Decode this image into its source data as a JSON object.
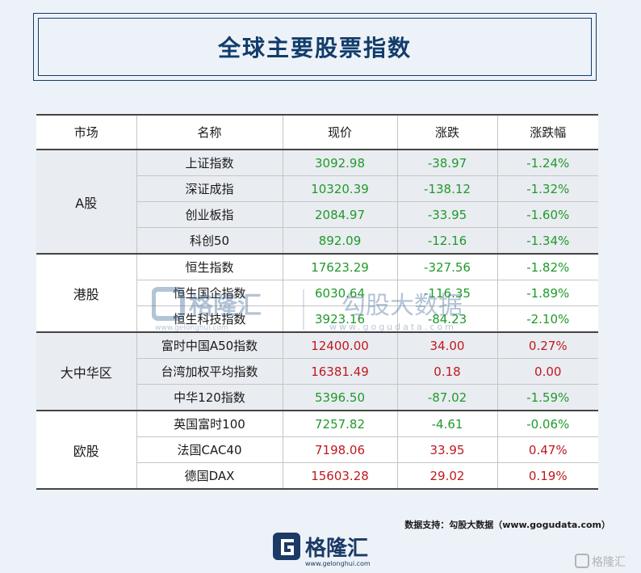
{
  "title": "全球主要股票指数",
  "headers": [
    "市场",
    "名称",
    "现价",
    "涨跌",
    "涨跌幅"
  ],
  "groups": [
    {
      "market": "A股",
      "rows": [
        {
          "name": "上证指数",
          "price": "3092.98",
          "change": "-38.97",
          "pct": "-1.24%",
          "dir": "down"
        },
        {
          "name": "深证成指",
          "price": "10320.39",
          "change": "-138.12",
          "pct": "-1.32%",
          "dir": "down"
        },
        {
          "name": "创业板指",
          "price": "2084.97",
          "change": "-33.95",
          "pct": "-1.60%",
          "dir": "down"
        },
        {
          "name": "科创50",
          "price": "892.09",
          "change": "-12.16",
          "pct": "-1.34%",
          "dir": "down"
        }
      ]
    },
    {
      "market": "港股",
      "rows": [
        {
          "name": "恒生指数",
          "price": "17623.29",
          "change": "-327.56",
          "pct": "-1.82%",
          "dir": "down"
        },
        {
          "name": "恒生国企指数",
          "price": "6030.64",
          "change": "-116.35",
          "pct": "-1.89%",
          "dir": "down"
        },
        {
          "name": "恒生科技指数",
          "price": "3923.16",
          "change": "-84.23",
          "pct": "-2.10%",
          "dir": "down"
        }
      ]
    },
    {
      "market": "大中华区",
      "rows": [
        {
          "name": "富时中国A50指数",
          "price": "12400.00",
          "change": "34.00",
          "pct": "0.27%",
          "dir": "up"
        },
        {
          "name": "台湾加权平均指数",
          "price": "16381.49",
          "change": "0.18",
          "pct": "0.00",
          "dir": "up"
        },
        {
          "name": "中华120指数",
          "price": "5396.50",
          "change": "-87.02",
          "pct": "-1.59%",
          "dir": "down"
        }
      ]
    },
    {
      "market": "欧股",
      "rows": [
        {
          "name": "英国富时100",
          "price": "7257.82",
          "change": "-4.61",
          "pct": "-0.06%",
          "dir": "down"
        },
        {
          "name": "法国CAC40",
          "price": "7198.06",
          "change": "33.95",
          "pct": "0.47%",
          "dir": "up"
        },
        {
          "name": "德国DAX",
          "price": "15603.28",
          "change": "29.02",
          "pct": "0.19%",
          "dir": "up"
        }
      ]
    }
  ],
  "watermark": {
    "brand": "格隆汇",
    "brand_url": "www.gelonghui.com",
    "partner": "勾股大数据",
    "partner_url": "www.gogudata.com"
  },
  "source_note": "数据支持：勾股大数据（www.gogudata.com）",
  "logo": {
    "brand": "格隆汇",
    "url": "www.gelonghui.com"
  },
  "corner_mark": "格隆汇",
  "colors": {
    "title": "#123c6b",
    "up": "#c0181f",
    "down": "#1f9a2a",
    "shade": "#e9ecf1"
  }
}
